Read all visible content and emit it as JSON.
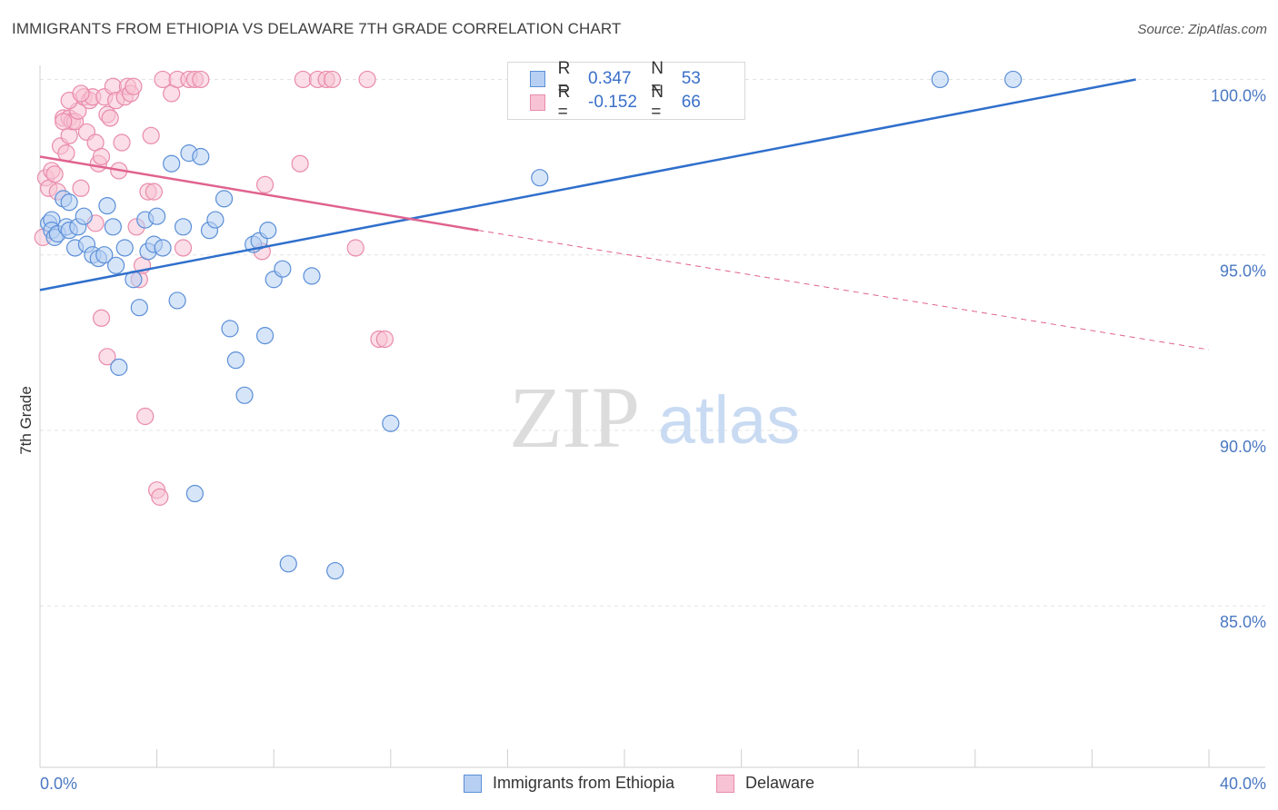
{
  "header": {
    "title": "IMMIGRANTS FROM ETHIOPIA VS DELAWARE 7TH GRADE CORRELATION CHART",
    "source": "Source: ZipAtlas.com"
  },
  "watermark": {
    "zip": "ZIP",
    "atlas": "atlas"
  },
  "colors": {
    "blue": "#5b8fd8",
    "blue_fill": "#b7cff2",
    "blue_line": "#2f6fcc",
    "pink": "#e98bab",
    "pink_fill": "#f7c3d4",
    "pink_line": "#e0628f",
    "axis_label": "#4a78c2"
  },
  "legend": {
    "rows": [
      {
        "r_label": "R =",
        "r_value": "0.347",
        "n_label": "N =",
        "n_value": "53"
      },
      {
        "r_label": "R =",
        "r_value": "-0.152",
        "n_label": "N =",
        "n_value": "66"
      }
    ]
  },
  "bottom_legend": {
    "series1": "Immigrants from Ethiopia",
    "series2": "Delaware"
  },
  "chart_data": {
    "type": "scatter",
    "title": "IMMIGRANTS FROM ETHIOPIA VS DELAWARE 7TH GRADE CORRELATION CHART",
    "xlabel": "",
    "ylabel": "7th Grade",
    "xlim": [
      0,
      40
    ],
    "ylim": [
      80.4,
      100.4
    ],
    "x_tick_labels": [
      "0.0%",
      "40.0%"
    ],
    "y_ticks": [
      85,
      90,
      95,
      100
    ],
    "y_tick_labels": [
      "85.0%",
      "90.0%",
      "95.0%",
      "100.0%"
    ],
    "grid": true,
    "series": [
      {
        "name": "Immigrants from Ethiopia",
        "color": "#5b8fd8",
        "trend": {
          "x": [
            0,
            37.5
          ],
          "y": [
            94.0,
            100.0
          ],
          "style": "solid"
        },
        "points": [
          [
            0.3,
            95.9
          ],
          [
            0.4,
            96.0
          ],
          [
            0.4,
            95.7
          ],
          [
            0.5,
            95.5
          ],
          [
            0.6,
            95.6
          ],
          [
            0.8,
            96.6
          ],
          [
            0.9,
            95.8
          ],
          [
            1.0,
            96.5
          ],
          [
            1.0,
            95.7
          ],
          [
            1.2,
            95.2
          ],
          [
            1.3,
            95.8
          ],
          [
            1.5,
            96.1
          ],
          [
            1.6,
            95.3
          ],
          [
            1.8,
            95.0
          ],
          [
            2.0,
            94.9
          ],
          [
            2.2,
            95.0
          ],
          [
            2.3,
            96.4
          ],
          [
            2.5,
            95.8
          ],
          [
            2.6,
            94.7
          ],
          [
            2.7,
            91.8
          ],
          [
            2.9,
            95.2
          ],
          [
            3.2,
            94.3
          ],
          [
            3.4,
            93.5
          ],
          [
            3.6,
            96.0
          ],
          [
            3.7,
            95.1
          ],
          [
            3.9,
            95.3
          ],
          [
            4.0,
            96.1
          ],
          [
            4.2,
            95.2
          ],
          [
            4.5,
            97.6
          ],
          [
            4.7,
            93.7
          ],
          [
            4.9,
            95.8
          ],
          [
            5.1,
            97.9
          ],
          [
            5.3,
            88.2
          ],
          [
            5.5,
            97.8
          ],
          [
            5.8,
            95.7
          ],
          [
            6.0,
            96.0
          ],
          [
            6.3,
            96.6
          ],
          [
            6.5,
            92.9
          ],
          [
            6.7,
            92.0
          ],
          [
            7.0,
            91.0
          ],
          [
            7.3,
            95.3
          ],
          [
            7.5,
            95.4
          ],
          [
            7.7,
            92.7
          ],
          [
            7.8,
            95.7
          ],
          [
            8.0,
            94.3
          ],
          [
            8.3,
            94.6
          ],
          [
            8.5,
            86.2
          ],
          [
            9.3,
            94.4
          ],
          [
            10.1,
            86.0
          ],
          [
            12.0,
            90.2
          ],
          [
            17.1,
            97.2
          ],
          [
            30.8,
            100.0
          ],
          [
            33.3,
            100.0
          ]
        ]
      },
      {
        "name": "Delaware",
        "color": "#e98bab",
        "trend": {
          "x": [
            0,
            15.0
          ],
          "y": [
            97.8,
            95.7
          ],
          "style": "solid",
          "dashed_to": [
            40,
            92.3
          ]
        },
        "points": [
          [
            0.1,
            95.5
          ],
          [
            0.2,
            97.2
          ],
          [
            0.3,
            96.9
          ],
          [
            0.4,
            97.4
          ],
          [
            0.5,
            97.3
          ],
          [
            0.6,
            96.8
          ],
          [
            0.7,
            98.1
          ],
          [
            0.8,
            98.9
          ],
          [
            0.9,
            97.9
          ],
          [
            1.0,
            98.4
          ],
          [
            1.0,
            98.9
          ],
          [
            1.1,
            98.8
          ],
          [
            1.2,
            98.8
          ],
          [
            1.3,
            99.1
          ],
          [
            1.4,
            96.9
          ],
          [
            1.5,
            99.5
          ],
          [
            1.6,
            98.5
          ],
          [
            1.7,
            99.4
          ],
          [
            1.8,
            99.5
          ],
          [
            1.9,
            98.2
          ],
          [
            2.0,
            97.6
          ],
          [
            2.1,
            97.8
          ],
          [
            2.2,
            99.5
          ],
          [
            2.3,
            99.0
          ],
          [
            2.4,
            98.9
          ],
          [
            2.5,
            99.8
          ],
          [
            2.6,
            99.4
          ],
          [
            2.7,
            97.4
          ],
          [
            2.8,
            98.2
          ],
          [
            2.9,
            99.5
          ],
          [
            3.0,
            99.8
          ],
          [
            3.1,
            99.6
          ],
          [
            3.2,
            99.8
          ],
          [
            3.3,
            95.8
          ],
          [
            3.4,
            94.3
          ],
          [
            3.5,
            94.7
          ],
          [
            3.6,
            90.4
          ],
          [
            3.7,
            96.8
          ],
          [
            3.8,
            98.4
          ],
          [
            3.9,
            96.8
          ],
          [
            4.0,
            88.3
          ],
          [
            4.1,
            88.1
          ],
          [
            4.2,
            100.0
          ],
          [
            4.5,
            99.6
          ],
          [
            4.7,
            100.0
          ],
          [
            4.9,
            95.2
          ],
          [
            5.1,
            100.0
          ],
          [
            5.3,
            100.0
          ],
          [
            5.5,
            100.0
          ],
          [
            7.6,
            95.1
          ],
          [
            7.7,
            97.0
          ],
          [
            8.9,
            97.6
          ],
          [
            9.0,
            100.0
          ],
          [
            9.5,
            100.0
          ],
          [
            9.8,
            100.0
          ],
          [
            10.0,
            100.0
          ],
          [
            10.8,
            95.2
          ],
          [
            11.2,
            100.0
          ],
          [
            11.6,
            92.6
          ],
          [
            11.8,
            92.6
          ],
          [
            2.3,
            92.1
          ],
          [
            2.1,
            93.2
          ],
          [
            1.9,
            95.9
          ],
          [
            1.0,
            99.4
          ],
          [
            0.8,
            98.8
          ],
          [
            1.4,
            99.6
          ]
        ]
      }
    ]
  }
}
